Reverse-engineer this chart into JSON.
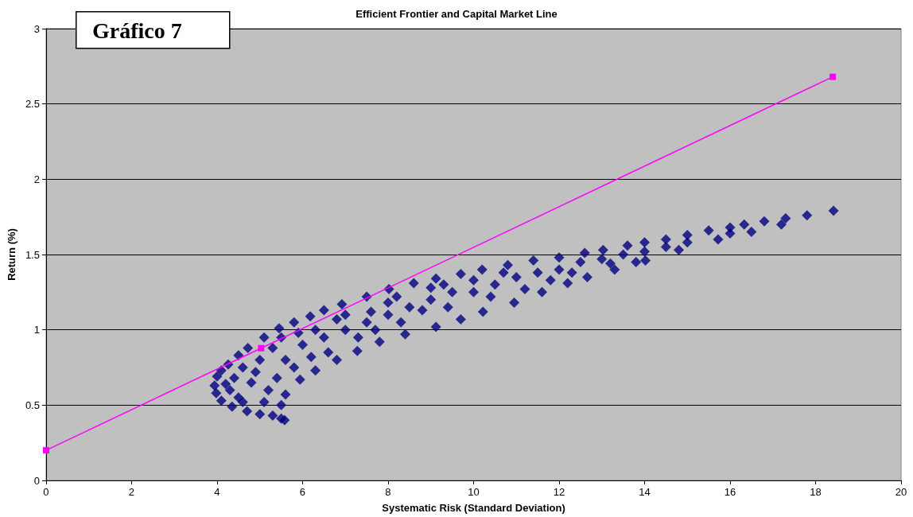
{
  "chart_data": {
    "type": "scatter",
    "title": "Efficient Frontier and Capital Market Line",
    "xlabel": "Systematic Risk (Standard Deviation)",
    "ylabel": "Return (%)",
    "annotations": [
      "Gráfico 7"
    ],
    "xlim": [
      0,
      20
    ],
    "xticks": [
      0,
      2,
      4,
      6,
      8,
      10,
      12,
      14,
      16,
      18,
      20
    ],
    "ylim": [
      0,
      3
    ],
    "yticks": [
      0,
      0.5,
      1,
      1.5,
      2,
      2.5,
      3
    ],
    "grid": "y",
    "series": [
      {
        "marker": "diamond",
        "color": "#000080",
        "x": [
          4.4,
          4.5,
          4.9,
          5.3,
          5.8,
          6.3,
          6.6,
          7.3,
          7.6,
          8.3,
          8.8,
          9.4,
          10.4,
          10.7,
          11.2,
          11.8,
          12.3,
          13.2,
          13.8,
          14.5,
          4.2,
          4.6,
          5.1,
          5.4,
          5.9,
          6.2,
          6.8,
          7.7,
          8.2,
          9.3,
          3.94,
          4.0,
          4.1,
          4.26,
          4.5,
          4.72,
          5.1,
          5.45,
          5.8,
          6.18,
          6.5,
          6.92,
          7.5,
          8.02,
          8.6,
          9.12,
          9.7,
          10.2,
          10.8,
          11.4,
          12.0,
          12.6,
          13.03,
          13.6,
          14.0,
          14.5,
          15.0,
          15.5,
          16.0,
          16.33,
          16.8,
          17.3,
          17.8,
          18.42,
          3.98,
          4.1,
          4.35,
          4.7,
          5.0,
          5.3,
          5.5,
          5.58,
          5.5,
          5.6,
          5.94,
          6.3,
          6.8,
          7.28,
          7.8,
          8.4,
          9.12,
          9.7,
          10.22,
          10.95,
          11.6,
          12.2,
          12.66,
          13.3,
          14.02,
          14.8,
          15.72,
          16.5,
          17.2,
          4.3,
          4.8,
          4.6,
          5.0,
          5.2,
          5.6,
          5.5,
          6.0,
          6.5,
          7.0,
          7.0,
          7.5,
          8.0,
          8.0,
          8.5,
          9.0,
          9.0,
          9.5,
          10.0,
          10.0,
          10.5,
          11.0,
          11.5,
          12.0,
          12.5,
          13.0,
          13.5,
          14.0,
          15.0,
          16.0
        ],
        "values": [
          0.68,
          0.55,
          0.72,
          0.88,
          0.75,
          1.0,
          0.85,
          0.95,
          1.12,
          1.05,
          1.13,
          1.15,
          1.22,
          1.38,
          1.27,
          1.33,
          1.38,
          1.44,
          1.45,
          1.55,
          0.64,
          0.52,
          0.52,
          0.68,
          0.98,
          0.82,
          1.07,
          1.0,
          1.22,
          1.3,
          0.63,
          0.69,
          0.73,
          0.77,
          0.83,
          0.88,
          0.95,
          1.01,
          1.05,
          1.09,
          1.13,
          1.17,
          1.22,
          1.27,
          1.31,
          1.34,
          1.37,
          1.4,
          1.43,
          1.46,
          1.48,
          1.51,
          1.53,
          1.56,
          1.58,
          1.6,
          1.63,
          1.66,
          1.68,
          1.7,
          1.72,
          1.74,
          1.76,
          1.79,
          0.58,
          0.53,
          0.49,
          0.46,
          0.44,
          0.43,
          0.41,
          0.4,
          0.5,
          0.57,
          0.67,
          0.73,
          0.8,
          0.86,
          0.92,
          0.97,
          1.02,
          1.07,
          1.12,
          1.18,
          1.25,
          1.31,
          1.35,
          1.4,
          1.46,
          1.53,
          1.6,
          1.65,
          1.7,
          0.6,
          0.65,
          0.75,
          0.8,
          0.6,
          0.8,
          0.95,
          0.9,
          0.95,
          1.0,
          1.1,
          1.05,
          1.1,
          1.18,
          1.15,
          1.2,
          1.28,
          1.25,
          1.25,
          1.33,
          1.3,
          1.35,
          1.38,
          1.4,
          1.45,
          1.47,
          1.5,
          1.52,
          1.58,
          1.64
        ]
      },
      {
        "type": "line",
        "marker": "square",
        "color": "#ff00ff",
        "line_style": "solid",
        "x": [
          0,
          5.03,
          18.4
        ],
        "values": [
          0.2,
          0.878,
          2.68
        ]
      }
    ]
  }
}
